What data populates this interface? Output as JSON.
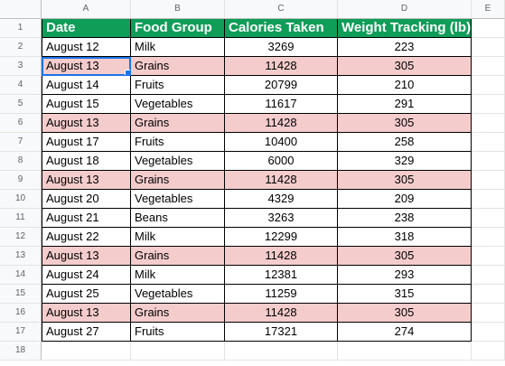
{
  "columns": [
    "A",
    "B",
    "C",
    "D",
    "E"
  ],
  "headers": [
    "Date",
    "Food Group",
    "Calories Taken",
    "Weight Tracking (lb)"
  ],
  "rows": [
    {
      "num": "1"
    },
    {
      "num": "2",
      "date": "August 12",
      "food": "Milk",
      "cal": "3269",
      "weight": "223"
    },
    {
      "num": "3",
      "date": "August 13",
      "food": "Grains",
      "cal": "11428",
      "weight": "305"
    },
    {
      "num": "4",
      "date": "August 14",
      "food": "Fruits",
      "cal": "20799",
      "weight": "210"
    },
    {
      "num": "5",
      "date": "August 15",
      "food": "Vegetables",
      "cal": "11617",
      "weight": "291"
    },
    {
      "num": "6",
      "date": "August 13",
      "food": "Grains",
      "cal": "11428",
      "weight": "305"
    },
    {
      "num": "7",
      "date": "August 17",
      "food": "Fruits",
      "cal": "10400",
      "weight": "258"
    },
    {
      "num": "8",
      "date": "August 18",
      "food": "Vegetables",
      "cal": "6000",
      "weight": "329"
    },
    {
      "num": "9",
      "date": "August 13",
      "food": "Grains",
      "cal": "11428",
      "weight": "305"
    },
    {
      "num": "10",
      "date": "August 20",
      "food": "Vegetables",
      "cal": "4329",
      "weight": "209"
    },
    {
      "num": "11",
      "date": "August 21",
      "food": "Beans",
      "cal": "3263",
      "weight": "238"
    },
    {
      "num": "12",
      "date": "August 22",
      "food": "Milk",
      "cal": "12299",
      "weight": "318"
    },
    {
      "num": "13",
      "date": "August 13",
      "food": "Grains",
      "cal": "11428",
      "weight": "305"
    },
    {
      "num": "14",
      "date": "August 24",
      "food": "Milk",
      "cal": "12381",
      "weight": "293"
    },
    {
      "num": "15",
      "date": "August 25",
      "food": "Vegetables",
      "cal": "11259",
      "weight": "315"
    },
    {
      "num": "16",
      "date": "August 13",
      "food": "Grains",
      "cal": "11428",
      "weight": "305"
    },
    {
      "num": "17",
      "date": "August 27",
      "food": "Fruits",
      "cal": "17321",
      "weight": "274"
    },
    {
      "num": "18"
    }
  ],
  "colors": {
    "header_fill": "#0f9d58",
    "duplicate_highlight": "#f4cccc",
    "selection": "#1a73e8"
  }
}
